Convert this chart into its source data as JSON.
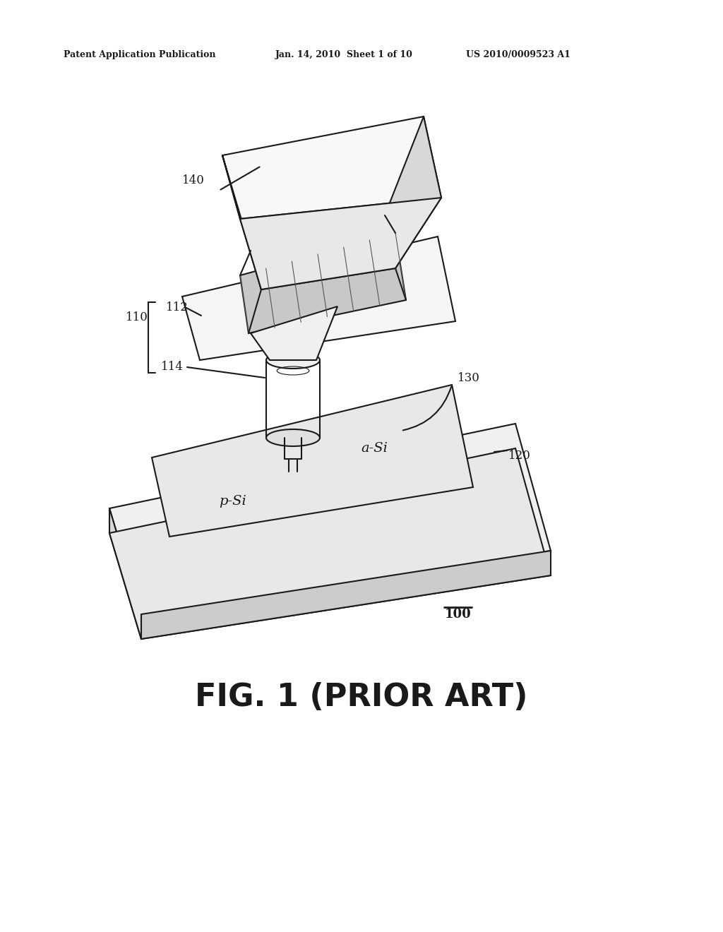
{
  "bg_color": "#ffffff",
  "line_color": "#1a1a1a",
  "line_width": 1.5,
  "header_left": "Patent Application Publication",
  "header_mid": "Jan. 14, 2010  Sheet 1 of 10",
  "header_right": "US 2010/0009523 A1",
  "figure_label": "FIG. 1 (PRIOR ART)",
  "label_100": "100",
  "label_110": "110",
  "label_112": "112",
  "label_114": "114",
  "label_120": "120",
  "label_130": "130",
  "label_140": "140",
  "text_aSi": "a-Si",
  "text_pSi": "p-Si"
}
